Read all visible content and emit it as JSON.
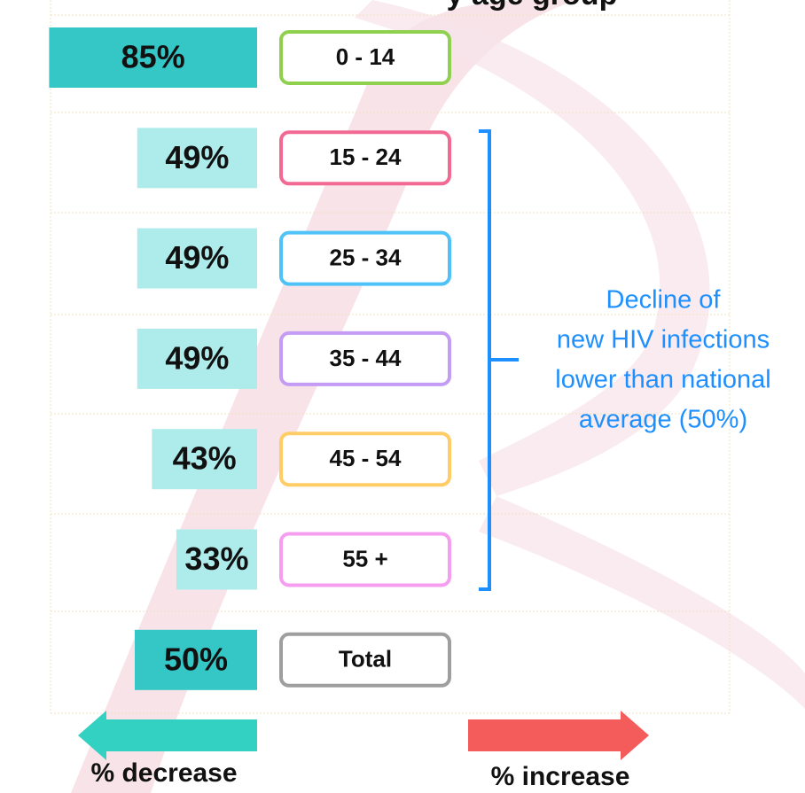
{
  "chart_data": {
    "type": "bar",
    "title": "y age group",
    "categories": [
      "0 - 14",
      "15 - 24",
      "25 - 34",
      "35 - 44",
      "45 - 54",
      "55 +",
      "Total"
    ],
    "values": [
      85,
      49,
      49,
      49,
      43,
      33,
      50
    ],
    "value_labels": [
      "85%",
      "49%",
      "49%",
      "49%",
      "43%",
      "33%",
      "50%"
    ],
    "bar_colors": [
      "#35c6c6",
      "#aeecec",
      "#aeecec",
      "#aeecec",
      "#aeecec",
      "#aeecec",
      "#35c6c6"
    ],
    "box_colors": [
      "#8fd14f",
      "#f26a94",
      "#4fc3f7",
      "#c49cf5",
      "#ffcc66",
      "#f59ef0",
      "#9e9e9e"
    ],
    "annotation": [
      "Decline of",
      "new HIV infections",
      "lower than national",
      "average (50%)"
    ],
    "annotation_color": "#1e8fff",
    "legend": [
      {
        "label": "% decrease",
        "color": "#33d1c1"
      },
      {
        "label": "% increase",
        "color": "#f45b5b"
      }
    ]
  }
}
